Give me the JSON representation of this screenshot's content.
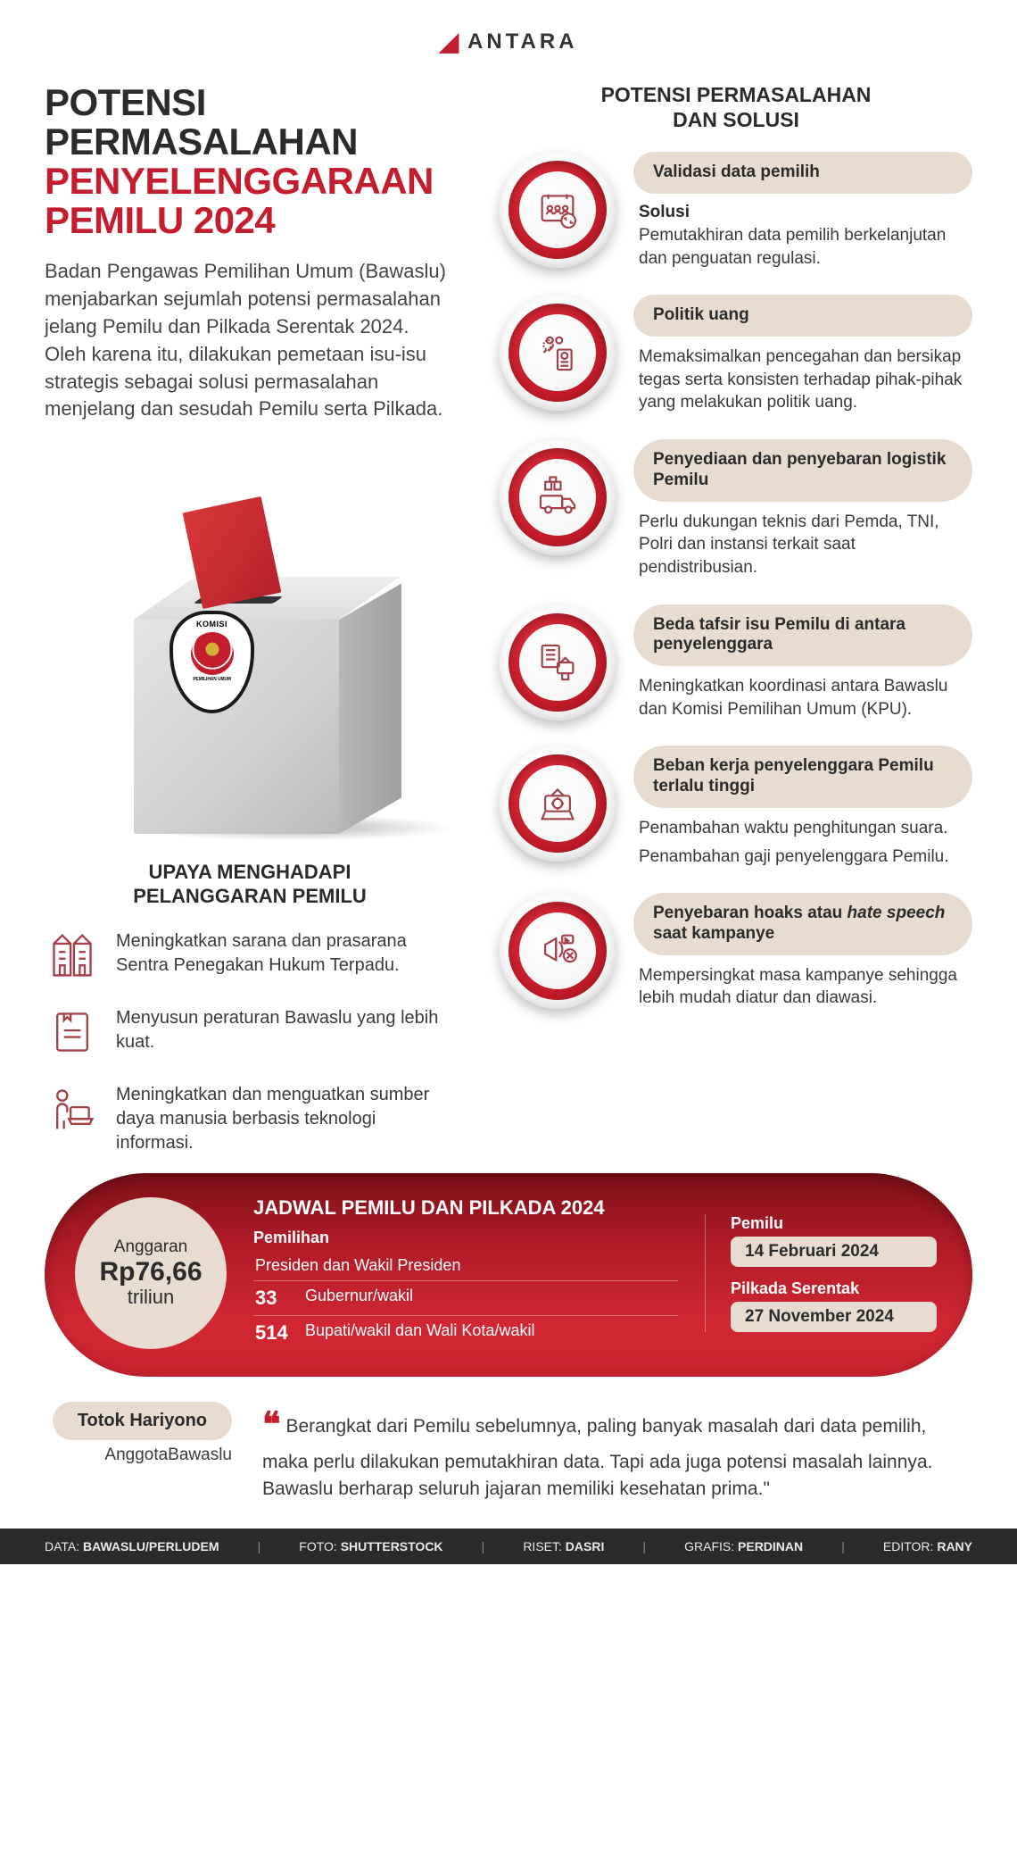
{
  "brand": "ANTARA",
  "title": {
    "line1": "POTENSI PERMASALAHAN",
    "line2a": "PENYELENGGARAAN",
    "line2b": "PEMILU 2024"
  },
  "intro": "Badan Pengawas Pemilihan Umum (Bawaslu) menjabarkan sejumlah potensi permasalahan jelang Pemilu dan Pilkada Serentak 2024. Oleh karena itu, dilakukan pemetaan isu-isu strategis sebagai solusi permasalahan menjelang dan sesudah Pemilu serta Pilkada.",
  "emblem": {
    "top": "KOMISI",
    "bottom": "PEMILIHAN UMUM"
  },
  "upaya": {
    "title1": "UPAYA MENGHADAPI",
    "title2": "PELANGGARAN PEMILU",
    "items": [
      {
        "text": "Meningkatkan sarana dan prasarana Sentra Penegakan Hukum Terpadu."
      },
      {
        "text": "Menyusun peraturan Bawaslu yang lebih kuat."
      },
      {
        "text": "Meningkatkan dan menguatkan sumber daya manusia berbasis teknologi informasi."
      }
    ]
  },
  "solusi": {
    "header1": "POTENSI PERMASALAHAN",
    "header2": "DAN SOLUSI",
    "items": [
      {
        "title": "Validasi data pemilih",
        "sub": "Solusi",
        "desc": [
          "Pemutakhiran data pemilih berkelanjutan dan penguatan regulasi."
        ]
      },
      {
        "title": "Politik uang",
        "desc": [
          "Memaksimalkan pencegahan dan bersikap tegas serta konsisten terhadap pihak-pihak yang melakukan politik uang."
        ]
      },
      {
        "title": "Penyediaan dan penyebaran logistik Pemilu",
        "desc": [
          "Perlu dukungan teknis dari Pemda, TNI, Polri dan instansi terkait saat pendistribusian."
        ]
      },
      {
        "title": "Beda tafsir isu Pemilu di antara penyelenggara",
        "desc": [
          "Meningkatkan koordinasi antara Bawaslu dan Komisi Pemilihan Umum (KPU)."
        ]
      },
      {
        "title": "Beban kerja penyelenggara Pemilu terlalu tinggi",
        "desc": [
          "Penambahan waktu penghitungan suara.",
          "Penambahan gaji penyelenggara Pemilu."
        ]
      },
      {
        "title": "Penyebaran hoaks atau hate speech saat kampanye",
        "title_html": "Penyebaran hoaks atau <i>hate speech</i> saat kampanye",
        "desc": [
          "Mempersingkat masa kampanye sehingga lebih mudah diatur dan diawasi."
        ]
      }
    ]
  },
  "schedule": {
    "title": "JADWAL PEMILU DAN PILKADA 2024",
    "budget": {
      "label": "Anggaran",
      "value": "Rp76,66",
      "unit": "triliun"
    },
    "mid": {
      "sub": "Pemilihan",
      "line1": "Presiden dan Wakil Presiden",
      "rows": [
        {
          "num": "33",
          "text": "Gubernur/wakil"
        },
        {
          "num": "514",
          "text": "Bupati/wakil dan Wali Kota/wakil"
        }
      ]
    },
    "right": [
      {
        "label": "Pemilu",
        "value": "14 Februari 2024"
      },
      {
        "label": "Pilkada Serentak",
        "value": "27 November 2024"
      }
    ]
  },
  "quote": {
    "name": "Totok Hariyono",
    "role": "AnggotaBawaslu",
    "text": "Berangkat dari Pemilu sebelumnya, paling banyak masalah dari data pemilih, maka perlu dilakukan pemutakhiran data. Tapi ada juga potensi masalah lainnya. Bawaslu berharap seluruh jajaran memiliki kesehatan prima.\""
  },
  "footer": [
    {
      "label": "DATA:",
      "value": "BAWASLU/PERLUDEM"
    },
    {
      "label": "FOTO:",
      "value": "SHUTTERSTOCK"
    },
    {
      "label": "RISET:",
      "value": "DASRI"
    },
    {
      "label": "GRAFIS:",
      "value": "PERDINAN"
    },
    {
      "label": "EDITOR:",
      "value": "RANY"
    }
  ],
  "colors": {
    "brand_red": "#c41e2e",
    "text_dark": "#2b2b2b",
    "pill_bg": "#e7dccf",
    "icon_stroke": "#a34048"
  }
}
